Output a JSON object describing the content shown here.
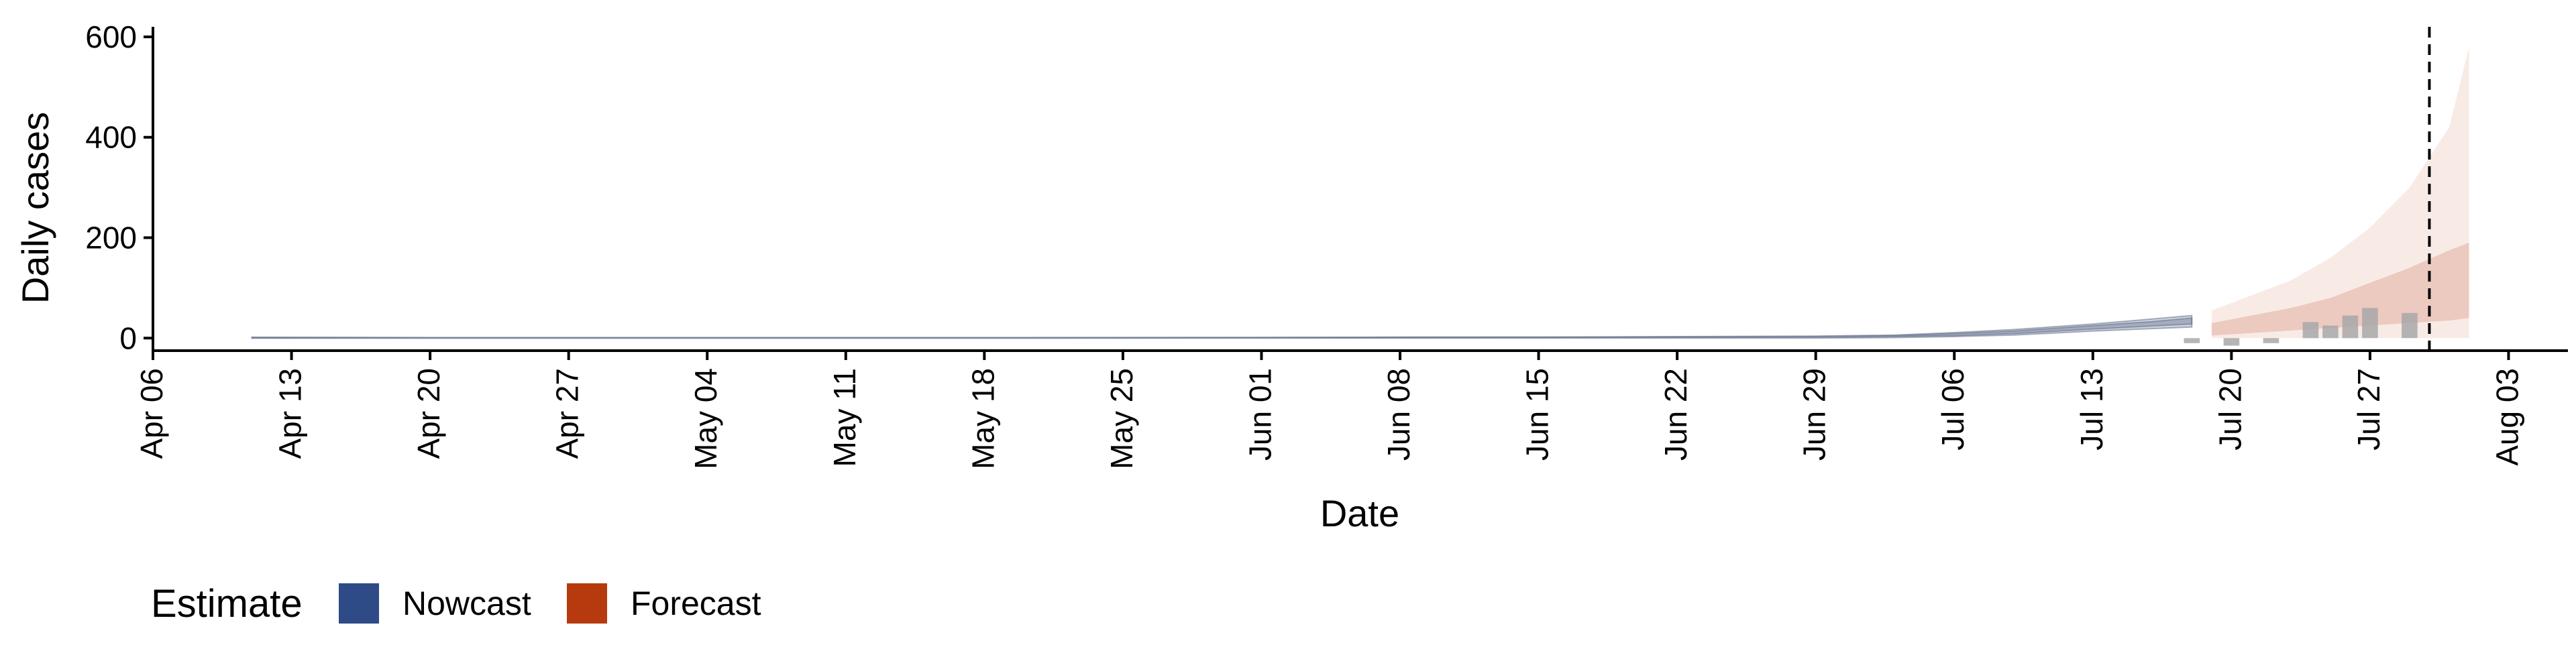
{
  "chart_data": {
    "type": "line",
    "xlabel": "Date",
    "ylabel": "Daily cases",
    "xlim": [
      "2020-04-06",
      "2020-08-06"
    ],
    "ylim": [
      -25,
      620
    ],
    "x_ticks": [
      "2020-04-06",
      "2020-04-13",
      "2020-04-20",
      "2020-04-27",
      "2020-05-04",
      "2020-05-11",
      "2020-05-18",
      "2020-05-25",
      "2020-06-01",
      "2020-06-08",
      "2020-06-15",
      "2020-06-22",
      "2020-06-29",
      "2020-07-06",
      "2020-07-13",
      "2020-07-20",
      "2020-07-27",
      "2020-08-03"
    ],
    "x_tick_labels": [
      "Apr 06",
      "Apr 13",
      "Apr 20",
      "Apr 27",
      "May 04",
      "May 11",
      "May 18",
      "May 25",
      "Jun 01",
      "Jun 08",
      "Jun 15",
      "Jun 22",
      "Jun 29",
      "Jul 06",
      "Jul 13",
      "Jul 20",
      "Jul 27",
      "Aug 03"
    ],
    "y_ticks": [
      0,
      200,
      400,
      600
    ],
    "y_tick_labels": [
      "0",
      "200",
      "400",
      "600"
    ],
    "grid": false,
    "legend": {
      "position": "bottom-left",
      "title": "Estimate",
      "items": [
        {
          "label": "Nowcast",
          "color": "#2e4a87"
        },
        {
          "label": "Forecast",
          "color": "#b63a0e"
        }
      ]
    },
    "forecast_date": "2020-07-30",
    "series": [
      {
        "name": "Nowcast",
        "color": "#2e4a87",
        "bands": [
          {
            "level": "outer",
            "points": [
              [
                "2020-04-11",
                0,
                2
              ],
              [
                "2020-04-20",
                0,
                1
              ],
              [
                "2020-05-04",
                0,
                1
              ],
              [
                "2020-05-18",
                0,
                1
              ],
              [
                "2020-06-01",
                0,
                1
              ],
              [
                "2020-06-08",
                0,
                2
              ],
              [
                "2020-06-15",
                0,
                2
              ],
              [
                "2020-06-22",
                0,
                3
              ],
              [
                "2020-06-29",
                0,
                4
              ],
              [
                "2020-07-03",
                1,
                6
              ],
              [
                "2020-07-06",
                3,
                11
              ],
              [
                "2020-07-09",
                6,
                17
              ],
              [
                "2020-07-13",
                14,
                28
              ],
              [
                "2020-07-16",
                19,
                38
              ],
              [
                "2020-07-18",
                22,
                45
              ]
            ]
          },
          {
            "level": "inner",
            "points": [
              [
                "2020-04-11",
                0,
                1
              ],
              [
                "2020-05-18",
                0,
                1
              ],
              [
                "2020-06-15",
                1,
                2
              ],
              [
                "2020-06-29",
                2,
                3
              ],
              [
                "2020-07-03",
                3,
                5
              ],
              [
                "2020-07-06",
                5,
                9
              ],
              [
                "2020-07-09",
                9,
                14
              ],
              [
                "2020-07-13",
                18,
                25
              ],
              [
                "2020-07-16",
                24,
                33
              ],
              [
                "2020-07-18",
                28,
                40
              ]
            ]
          }
        ]
      },
      {
        "name": "Forecast",
        "color": "#b63a0e",
        "bands": [
          {
            "level": "outer",
            "points": [
              [
                "2020-07-19",
                0,
                55
              ],
              [
                "2020-07-21",
                0,
                85
              ],
              [
                "2020-07-23",
                0,
                115
              ],
              [
                "2020-07-25",
                0,
                160
              ],
              [
                "2020-07-27",
                0,
                220
              ],
              [
                "2020-07-29",
                0,
                300
              ],
              [
                "2020-07-31",
                0,
                420
              ],
              [
                "2020-08-01",
                0,
                580
              ]
            ]
          },
          {
            "level": "inner",
            "points": [
              [
                "2020-07-19",
                5,
                30
              ],
              [
                "2020-07-21",
                10,
                45
              ],
              [
                "2020-07-23",
                15,
                60
              ],
              [
                "2020-07-25",
                20,
                80
              ],
              [
                "2020-07-27",
                25,
                110
              ],
              [
                "2020-07-29",
                30,
                140
              ],
              [
                "2020-07-31",
                35,
                175
              ],
              [
                "2020-08-01",
                40,
                190
              ]
            ]
          }
        ]
      }
    ],
    "observed_bars": {
      "color": "#a8a8a8",
      "data": [
        [
          "2020-07-18",
          -10
        ],
        [
          "2020-07-19",
          0
        ],
        [
          "2020-07-20",
          -15
        ],
        [
          "2020-07-21",
          0
        ],
        [
          "2020-07-22",
          -10
        ],
        [
          "2020-07-23",
          0
        ],
        [
          "2020-07-24",
          32
        ],
        [
          "2020-07-25",
          25
        ],
        [
          "2020-07-26",
          45
        ],
        [
          "2020-07-27",
          60
        ],
        [
          "2020-07-28",
          0
        ],
        [
          "2020-07-29",
          50
        ]
      ]
    }
  }
}
